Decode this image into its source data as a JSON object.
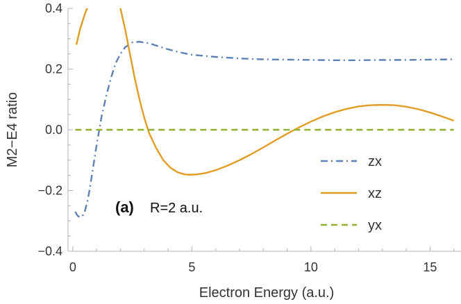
{
  "chart_data": {
    "type": "line",
    "title": "",
    "xlabel": "Electron Energy (a.u.)",
    "ylabel": "M2−E4 ratio",
    "xlim": [
      -0.2,
      16.3
    ],
    "ylim": [
      -0.4,
      0.4
    ],
    "grid": false,
    "legend_position": "bottom-right",
    "x_ticks": [
      {
        "value": 0,
        "label": "0"
      },
      {
        "value": 5,
        "label": "5"
      },
      {
        "value": 10,
        "label": "10"
      },
      {
        "value": 15,
        "label": "15"
      }
    ],
    "y_ticks": [
      {
        "value": -0.4,
        "label": "−0.4"
      },
      {
        "value": -0.2,
        "label": "−0.2"
      },
      {
        "value": 0.0,
        "label": "0.0"
      },
      {
        "value": 0.2,
        "label": "0.2"
      },
      {
        "value": 0.4,
        "label": "0.4"
      }
    ],
    "annotation": {
      "bold": "(a)",
      "text": "R=2 a.u."
    },
    "series": [
      {
        "name": "zx",
        "color": "#5E81B5",
        "style": "dashdot",
        "x": [
          0.1,
          0.2,
          0.3,
          0.4,
          0.5,
          0.6,
          0.7,
          0.8,
          0.9,
          1.0,
          1.2,
          1.4,
          1.6,
          1.8,
          2.0,
          2.2,
          2.5,
          2.8,
          3.2,
          3.6,
          4.0,
          4.5,
          5.0,
          6.0,
          7.0,
          8.0,
          9.0,
          10.0,
          11.0,
          12.0,
          13.0,
          14.0,
          15.0,
          16.0
        ],
        "y": [
          -0.27,
          -0.283,
          -0.288,
          -0.285,
          -0.27,
          -0.24,
          -0.2,
          -0.15,
          -0.1,
          -0.05,
          0.04,
          0.11,
          0.17,
          0.22,
          0.25,
          0.272,
          0.288,
          0.29,
          0.285,
          0.275,
          0.265,
          0.255,
          0.247,
          0.24,
          0.235,
          0.232,
          0.231,
          0.23,
          0.229,
          0.229,
          0.23,
          0.23,
          0.231,
          0.232
        ]
      },
      {
        "name": "xz",
        "color": "#E19C24",
        "style": "solid",
        "x": [
          0.15,
          0.3,
          0.5,
          0.6,
          0.65,
          1.9,
          2.0,
          2.2,
          2.4,
          2.6,
          2.8,
          3.0,
          3.2,
          3.5,
          3.8,
          4.1,
          4.4,
          4.7,
          4.9,
          5.2,
          5.6,
          6.0,
          6.5,
          7.0,
          7.5,
          8.0,
          8.5,
          9.0,
          9.5,
          10.0,
          10.5,
          11.0,
          11.5,
          12.0,
          12.5,
          13.0,
          13.5,
          14.0,
          14.5,
          15.0,
          15.5,
          16.0
        ],
        "y": [
          0.28,
          0.33,
          0.38,
          0.4,
          0.41,
          0.41,
          0.4,
          0.33,
          0.25,
          0.17,
          0.1,
          0.04,
          -0.01,
          -0.06,
          -0.1,
          -0.125,
          -0.14,
          -0.147,
          -0.148,
          -0.147,
          -0.142,
          -0.133,
          -0.118,
          -0.1,
          -0.08,
          -0.058,
          -0.035,
          -0.013,
          0.008,
          0.027,
          0.044,
          0.058,
          0.069,
          0.077,
          0.081,
          0.082,
          0.081,
          0.076,
          0.068,
          0.057,
          0.044,
          0.03
        ]
      },
      {
        "name": "yx",
        "color": "#8FB032",
        "style": "dashed",
        "x": [
          0.1,
          16.0
        ],
        "y": [
          0.0,
          0.0
        ]
      }
    ]
  }
}
